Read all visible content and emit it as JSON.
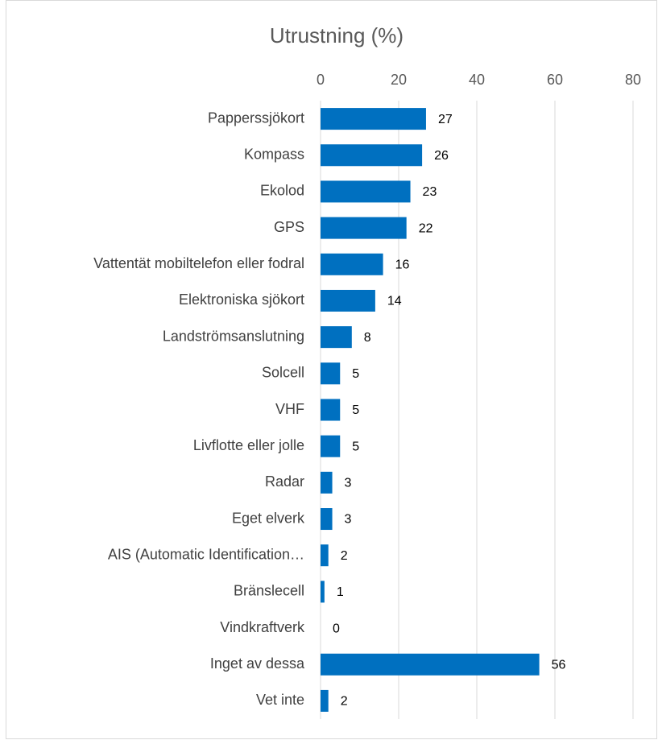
{
  "chart_data": {
    "type": "bar",
    "orientation": "horizontal",
    "title": "Utrustning (%)",
    "categories": [
      "Papperssjökort",
      "Kompass",
      "Ekolod",
      "GPS",
      "Vattentät mobiltelefon eller fodral",
      "Elektroniska sjökort",
      "Landströmsanslutning",
      "Solcell",
      "VHF",
      "Livflotte eller jolle",
      "Radar",
      "Eget elverk",
      "AIS (Automatic Identification…",
      "Bränslecell",
      "Vindkraftverk",
      "Inget av dessa",
      "Vet inte"
    ],
    "values": [
      27,
      26,
      23,
      22,
      16,
      14,
      8,
      5,
      5,
      5,
      3,
      3,
      2,
      1,
      0,
      56,
      2
    ],
    "color": "#0070c0",
    "xlim": [
      0,
      80
    ],
    "xticks": [
      0,
      20,
      40,
      60,
      80
    ],
    "grid": true
  }
}
